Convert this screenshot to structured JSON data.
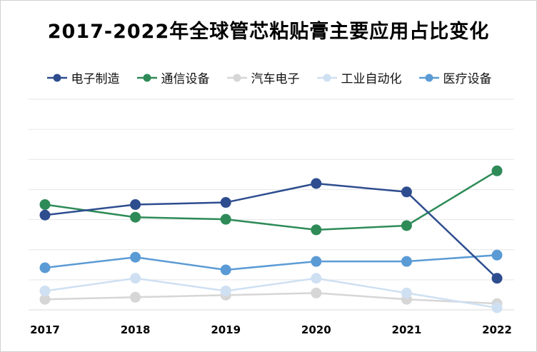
{
  "chart_data": {
    "type": "line",
    "title": "2017-2022年全球管芯粘贴膏主要应用占比变化",
    "categories": [
      "2017",
      "2018",
      "2019",
      "2020",
      "2021",
      "2022"
    ],
    "ylim": [
      0,
      10
    ],
    "grid": true,
    "legend_position": "top",
    "series": [
      {
        "name": "电子制造",
        "color": "#2e4d8f",
        "values": [
          4.5,
          5.0,
          5.1,
          6.0,
          5.6,
          1.5
        ]
      },
      {
        "name": "通信设备",
        "color": "#2e8b57",
        "values": [
          5.0,
          4.4,
          4.3,
          3.8,
          4.0,
          6.6
        ]
      },
      {
        "name": "汽车电子",
        "color": "#d6d6d6",
        "values": [
          0.5,
          0.6,
          0.7,
          0.8,
          0.5,
          0.3
        ]
      },
      {
        "name": "工业自动化",
        "color": "#cfe0f2",
        "values": [
          0.9,
          1.5,
          0.9,
          1.5,
          0.8,
          0.1
        ]
      },
      {
        "name": "医疗设备",
        "color": "#5b9bd5",
        "values": [
          2.0,
          2.5,
          1.9,
          2.3,
          2.3,
          2.6
        ]
      }
    ]
  }
}
